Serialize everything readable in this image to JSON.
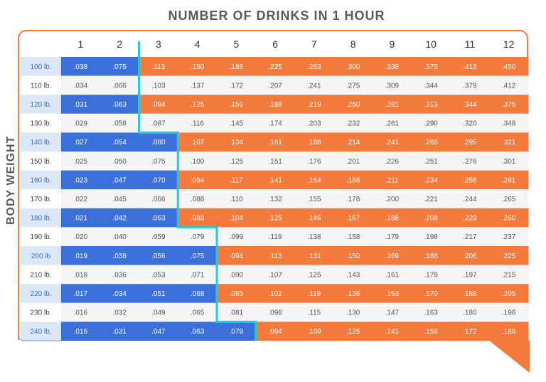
{
  "title": "NUMBER OF DRINKS IN 1 HOUR",
  "ylabel": "BODY WEIGHT",
  "colors": {
    "blue": "#3b6fd9",
    "orange": "#f47a3c",
    "white_row": "#f5f5f5",
    "light_blue_label": "#dce7f7",
    "boundary": "#27c9d9"
  },
  "chart_data": {
    "type": "table",
    "title": "NUMBER OF DRINKS IN 1 HOUR",
    "ylabel": "BODY WEIGHT",
    "drinks": [
      "1",
      "2",
      "3",
      "4",
      "5",
      "6",
      "7",
      "8",
      "9",
      "10",
      "11",
      "12"
    ],
    "rows": [
      {
        "weight": "100 lb.",
        "highlight": true,
        "safe": 2,
        "values": [
          ".038",
          ".075",
          ".113",
          ".150",
          ".188",
          ".225",
          ".263",
          ".300",
          ".338",
          ".375",
          ".413",
          ".450"
        ]
      },
      {
        "weight": "110 lb.",
        "highlight": false,
        "safe": 2,
        "values": [
          ".034",
          ".066",
          ".103",
          ".137",
          ".172",
          ".207",
          ".241",
          ".275",
          ".309",
          ".344",
          ".379",
          ".412"
        ]
      },
      {
        "weight": "120 lb.",
        "highlight": true,
        "safe": 2,
        "values": [
          ".031",
          ".063",
          ".094",
          ".125",
          ".156",
          ".188",
          ".219",
          ".250",
          ".281",
          ".313",
          ".344",
          ".375"
        ]
      },
      {
        "weight": "130 lb.",
        "highlight": false,
        "safe": 2,
        "values": [
          ".029",
          ".058",
          ".087",
          ".116",
          ".145",
          ".174",
          ".203",
          ".232",
          ".261",
          ".290",
          ".320",
          ".348"
        ]
      },
      {
        "weight": "140 lb.",
        "highlight": true,
        "safe": 3,
        "values": [
          ".027",
          ".054",
          ".080",
          ".107",
          ".134",
          ".161",
          ".188",
          ".214",
          ".241",
          ".268",
          ".295",
          ".321"
        ]
      },
      {
        "weight": "150 lb.",
        "highlight": false,
        "safe": 3,
        "values": [
          ".025",
          ".050",
          ".075",
          ".100",
          ".125",
          ".151",
          ".176",
          ".201",
          ".226",
          ".251",
          ".276",
          ".301"
        ]
      },
      {
        "weight": "160 lb.",
        "highlight": true,
        "safe": 3,
        "values": [
          ".023",
          ".047",
          ".070",
          ".094",
          ".117",
          ".141",
          ".164",
          ".188",
          ".211",
          ".234",
          ".258",
          ".281"
        ]
      },
      {
        "weight": "170 lb.",
        "highlight": false,
        "safe": 3,
        "values": [
          ".022",
          ".045",
          ".066",
          ".088",
          ".110",
          ".132",
          ".155",
          ".178",
          ".200",
          ".221",
          ".244",
          ".265"
        ]
      },
      {
        "weight": "180 lb.",
        "highlight": true,
        "safe": 3,
        "values": [
          ".021",
          ".042",
          ".063",
          ".083",
          ".104",
          ".125",
          ".146",
          ".167",
          ".188",
          ".208",
          ".229",
          ".250"
        ]
      },
      {
        "weight": "190 lb.",
        "highlight": false,
        "safe": 4,
        "values": [
          ".020",
          ".040",
          ".059",
          ".079",
          ".099",
          ".119",
          ".138",
          ".158",
          ".179",
          ".198",
          ".217",
          ".237"
        ]
      },
      {
        "weight": "200 lb",
        "highlight": true,
        "safe": 4,
        "values": [
          ".019",
          ".038",
          ".056",
          ".075",
          ".094",
          ".113",
          ".131",
          ".150",
          ".169",
          ".188",
          ".206",
          ".225"
        ]
      },
      {
        "weight": "210 lb.",
        "highlight": false,
        "safe": 4,
        "values": [
          ".018",
          ".036",
          ".053",
          ".071",
          ".090",
          ".107",
          ".125",
          ".143",
          ".161",
          ".179",
          ".197",
          ".215"
        ]
      },
      {
        "weight": "220 lb.",
        "highlight": true,
        "safe": 4,
        "values": [
          ".017",
          ".034",
          ".051",
          ".068",
          ".085",
          ".102",
          ".119",
          ".136",
          ".153",
          ".170",
          ".188",
          ".205"
        ]
      },
      {
        "weight": "230 lb.",
        "highlight": false,
        "safe": 4,
        "values": [
          ".016",
          ".032",
          ".049",
          ".065",
          ".081",
          ".098",
          ".115",
          ".130",
          ".147",
          ".163",
          ".180",
          ".196"
        ]
      },
      {
        "weight": "240 lb.",
        "highlight": true,
        "safe": 5,
        "values": [
          ".016",
          ".031",
          ".047",
          ".063",
          ".078",
          ".094",
          ".109",
          ".125",
          ".141",
          ".156",
          ".172",
          ".188"
        ]
      }
    ]
  }
}
